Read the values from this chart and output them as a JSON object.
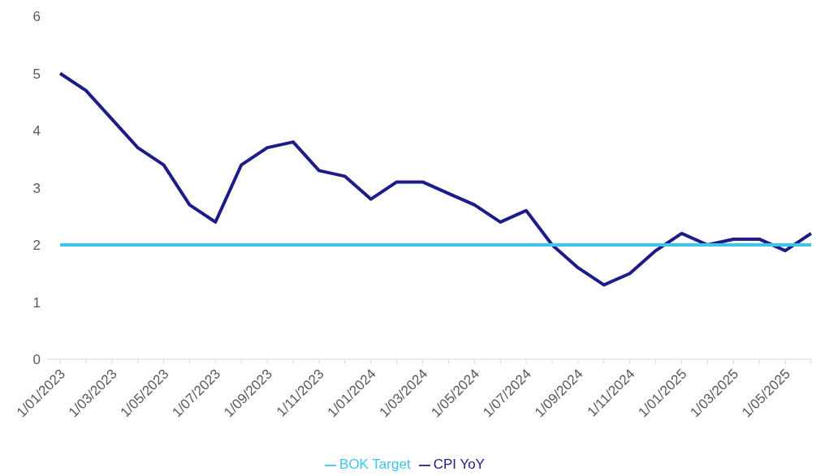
{
  "chart_data": {
    "type": "line",
    "categories": [
      "1/01/2023",
      null,
      "1/03/2023",
      null,
      "1/05/2023",
      null,
      "1/07/2023",
      null,
      "1/09/2023",
      null,
      "1/11/2023",
      null,
      "1/01/2024",
      null,
      "1/03/2024",
      null,
      "1/05/2024",
      null,
      "1/07/2024",
      null,
      "1/09/2024",
      null,
      "1/11/2024",
      null,
      "1/01/2025",
      null,
      "1/03/2025",
      null,
      "1/05/2025",
      null
    ],
    "series": [
      {
        "name": "CPI YoY",
        "color": "#1c1c8a",
        "values": [
          5.0,
          4.7,
          4.2,
          3.7,
          3.4,
          2.7,
          2.4,
          3.4,
          3.7,
          3.8,
          3.3,
          3.2,
          2.8,
          3.1,
          3.1,
          2.9,
          2.7,
          2.4,
          2.6,
          2.0,
          1.6,
          1.3,
          1.5,
          1.9,
          2.2,
          2.0,
          2.1,
          2.1,
          1.9,
          2.2
        ]
      },
      {
        "name": "BOK Target",
        "color": "#3ec6ea",
        "values": [
          2,
          2,
          2,
          2,
          2,
          2,
          2,
          2,
          2,
          2,
          2,
          2,
          2,
          2,
          2,
          2,
          2,
          2,
          2,
          2,
          2,
          2,
          2,
          2,
          2,
          2,
          2,
          2,
          2,
          2
        ]
      }
    ],
    "ylim": [
      0,
      6
    ],
    "yticks": [
      0,
      1,
      2,
      3,
      4,
      5,
      6
    ],
    "grid": false,
    "legend": "bottom",
    "line_style": "solid"
  }
}
